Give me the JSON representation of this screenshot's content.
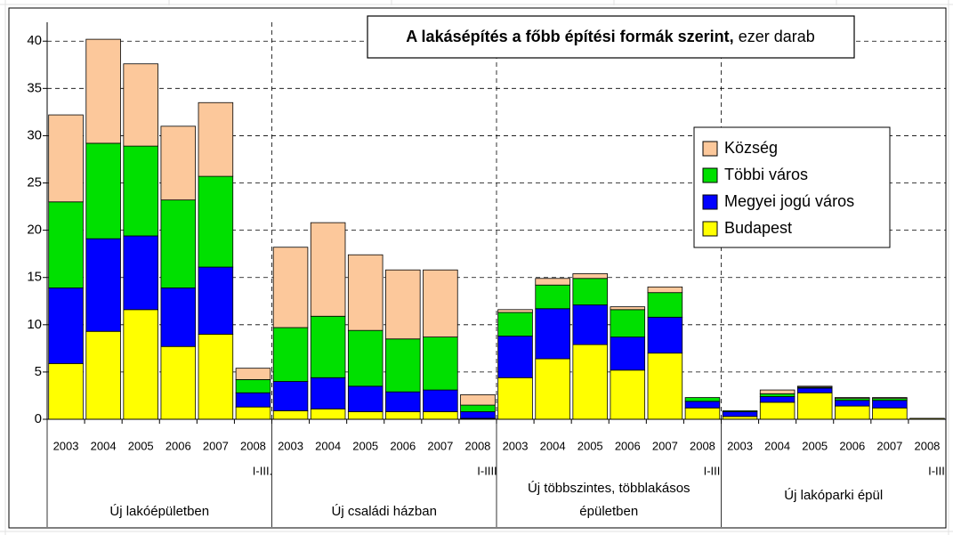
{
  "chart_data": {
    "type": "stacked_bar",
    "title": "A lakásépítés a főbb építési formák szerint,",
    "title_unit": "ezer darab",
    "categories": [
      "2003",
      "2004",
      "2005",
      "2006",
      "2007",
      "2008",
      "2003",
      "2004",
      "2005",
      "2006",
      "2007",
      "2008",
      "2003",
      "2004",
      "2005",
      "2006",
      "2007",
      "2008",
      "2003",
      "2004",
      "2005",
      "2006",
      "2007",
      "2008"
    ],
    "sublabels": [
      null,
      null,
      null,
      null,
      null,
      "I-III.",
      null,
      null,
      null,
      null,
      null,
      "I-IIII",
      null,
      null,
      null,
      null,
      null,
      "I-III",
      null,
      null,
      null,
      null,
      null,
      "I-III"
    ],
    "groups": [
      {
        "label": [
          "Új lakóépületben"
        ]
      },
      {
        "label": [
          "Új családi házban"
        ]
      },
      {
        "label": [
          "Új többszintes, többlakásos",
          "épületben"
        ]
      },
      {
        "label": [
          "Új lakóparki épül"
        ]
      }
    ],
    "series": [
      {
        "name": "Budapest",
        "color": "#ffff00",
        "values": [
          5.9,
          9.3,
          11.6,
          7.7,
          9.0,
          1.3,
          0.9,
          1.1,
          0.8,
          0.8,
          0.8,
          0.1,
          4.4,
          6.4,
          7.9,
          5.2,
          7.0,
          1.2,
          0.3,
          1.8,
          2.8,
          1.4,
          1.2,
          0.1
        ]
      },
      {
        "name": "Megyei jogú város",
        "color": "#0000ff",
        "values": [
          8.0,
          9.8,
          7.8,
          6.2,
          7.1,
          1.5,
          3.1,
          3.3,
          2.7,
          2.1,
          2.3,
          0.7,
          4.4,
          5.3,
          4.2,
          3.5,
          3.8,
          0.7,
          0.5,
          0.6,
          0.5,
          0.6,
          0.8,
          0
        ]
      },
      {
        "name": "Többi város",
        "color": "#00e000",
        "values": [
          9.1,
          10.1,
          9.5,
          9.3,
          9.6,
          1.4,
          5.7,
          6.5,
          5.9,
          5.6,
          5.6,
          0.7,
          2.5,
          2.5,
          2.8,
          2.9,
          2.6,
          0.4,
          0.1,
          0.3,
          0.1,
          0.2,
          0.2,
          0
        ]
      },
      {
        "name": "Község",
        "color": "#fcc89b",
        "values": [
          9.2,
          11.0,
          8.7,
          7.8,
          7.8,
          1.2,
          8.5,
          9.9,
          8.0,
          7.3,
          7.1,
          1.1,
          0.3,
          0.7,
          0.5,
          0.3,
          0.6,
          0,
          0,
          0.4,
          0.1,
          0.1,
          0.1,
          0
        ]
      }
    ],
    "ylim": [
      0,
      42
    ],
    "yticks": [
      0,
      5,
      10,
      15,
      20,
      25,
      30,
      35,
      40
    ],
    "grid": true,
    "legend": "upper right"
  }
}
